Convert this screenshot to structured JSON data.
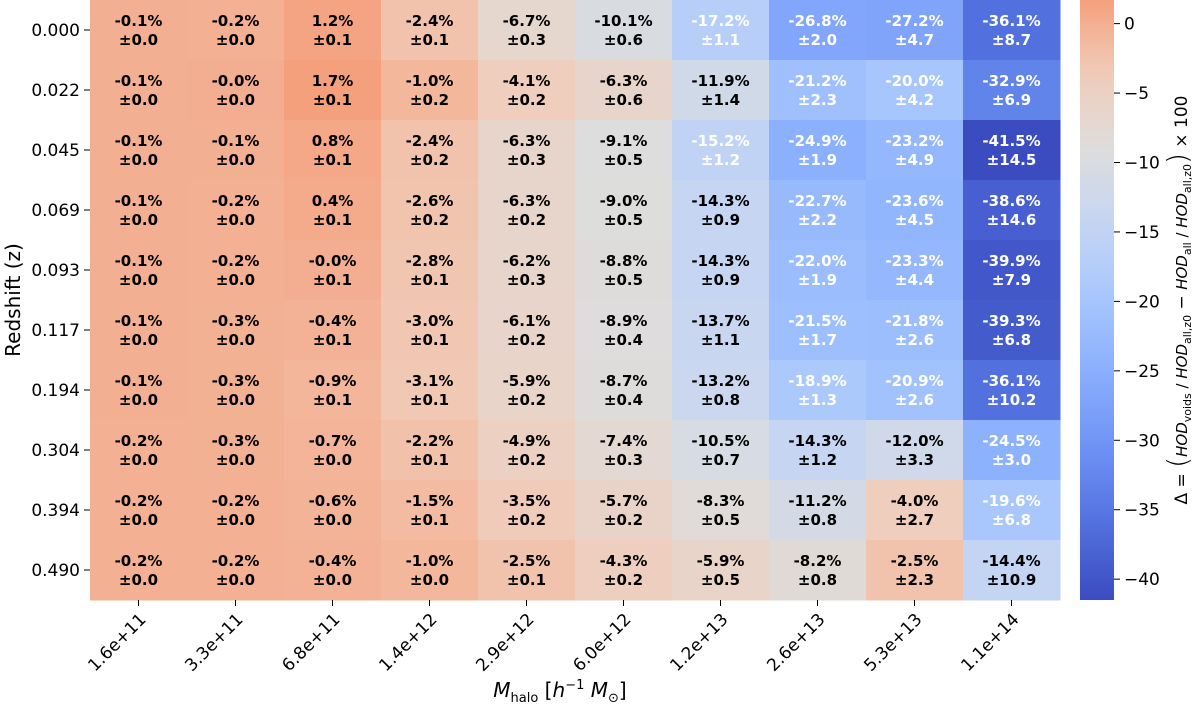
{
  "chart_data": {
    "type": "heatmap",
    "title": "",
    "xlabel": "M_halo [h^-1 M_⊙]",
    "ylabel": "Redshift (z)",
    "x_categories": [
      "1.6e+11",
      "3.3e+11",
      "6.8e+11",
      "1.4e+12",
      "2.9e+12",
      "6.0e+12",
      "1.2e+13",
      "2.6e+13",
      "5.3e+13",
      "1.1e+14"
    ],
    "y_categories": [
      "0.000",
      "0.022",
      "0.045",
      "0.069",
      "0.093",
      "0.117",
      "0.194",
      "0.304",
      "0.394",
      "0.490"
    ],
    "values": [
      [
        -0.1,
        -0.2,
        1.2,
        -2.4,
        -6.7,
        -10.1,
        -17.2,
        -26.8,
        -27.2,
        -36.1
      ],
      [
        -0.1,
        -0.0,
        1.7,
        -1.0,
        -4.1,
        -6.3,
        -11.9,
        -21.2,
        -20.0,
        -32.9
      ],
      [
        -0.1,
        -0.1,
        0.8,
        -2.4,
        -6.3,
        -9.1,
        -15.2,
        -24.9,
        -23.2,
        -41.5
      ],
      [
        -0.1,
        -0.2,
        0.4,
        -2.6,
        -6.3,
        -9.0,
        -14.3,
        -22.7,
        -23.6,
        -38.6
      ],
      [
        -0.1,
        -0.2,
        -0.0,
        -2.8,
        -6.2,
        -8.8,
        -14.3,
        -22.0,
        -23.3,
        -39.9
      ],
      [
        -0.1,
        -0.3,
        -0.4,
        -3.0,
        -6.1,
        -8.9,
        -13.7,
        -21.5,
        -21.8,
        -39.3
      ],
      [
        -0.1,
        -0.3,
        -0.9,
        -3.1,
        -5.9,
        -8.7,
        -13.2,
        -18.9,
        -20.9,
        -36.1
      ],
      [
        -0.2,
        -0.3,
        -0.7,
        -2.2,
        -4.9,
        -7.4,
        -10.5,
        -14.3,
        -12.0,
        -24.5
      ],
      [
        -0.2,
        -0.2,
        -0.6,
        -1.5,
        -3.5,
        -5.7,
        -8.3,
        -11.2,
        -4.0,
        -19.6
      ],
      [
        -0.2,
        -0.2,
        -0.4,
        -1.0,
        -2.5,
        -4.3,
        -5.9,
        -8.2,
        -2.5,
        -14.4
      ]
    ],
    "value_labels": [
      [
        "-0.1%",
        "-0.2%",
        "1.2%",
        "-2.4%",
        "-6.7%",
        "-10.1%",
        "-17.2%",
        "-26.8%",
        "-27.2%",
        "-36.1%"
      ],
      [
        "-0.1%",
        "-0.0%",
        "1.7%",
        "-1.0%",
        "-4.1%",
        "-6.3%",
        "-11.9%",
        "-21.2%",
        "-20.0%",
        "-32.9%"
      ],
      [
        "-0.1%",
        "-0.1%",
        "0.8%",
        "-2.4%",
        "-6.3%",
        "-9.1%",
        "-15.2%",
        "-24.9%",
        "-23.2%",
        "-41.5%"
      ],
      [
        "-0.1%",
        "-0.2%",
        "0.4%",
        "-2.6%",
        "-6.3%",
        "-9.0%",
        "-14.3%",
        "-22.7%",
        "-23.6%",
        "-38.6%"
      ],
      [
        "-0.1%",
        "-0.2%",
        "-0.0%",
        "-2.8%",
        "-6.2%",
        "-8.8%",
        "-14.3%",
        "-22.0%",
        "-23.3%",
        "-39.9%"
      ],
      [
        "-0.1%",
        "-0.3%",
        "-0.4%",
        "-3.0%",
        "-6.1%",
        "-8.9%",
        "-13.7%",
        "-21.5%",
        "-21.8%",
        "-39.3%"
      ],
      [
        "-0.1%",
        "-0.3%",
        "-0.9%",
        "-3.1%",
        "-5.9%",
        "-8.7%",
        "-13.2%",
        "-18.9%",
        "-20.9%",
        "-36.1%"
      ],
      [
        "-0.2%",
        "-0.3%",
        "-0.7%",
        "-2.2%",
        "-4.9%",
        "-7.4%",
        "-10.5%",
        "-14.3%",
        "-12.0%",
        "-24.5%"
      ],
      [
        "-0.2%",
        "-0.2%",
        "-0.6%",
        "-1.5%",
        "-3.5%",
        "-5.7%",
        "-8.3%",
        "-11.2%",
        "-4.0%",
        "-19.6%"
      ],
      [
        "-0.2%",
        "-0.2%",
        "-0.4%",
        "-1.0%",
        "-2.5%",
        "-4.3%",
        "-5.9%",
        "-8.2%",
        "-2.5%",
        "-14.4%"
      ]
    ],
    "errors": [
      [
        "±0.0",
        "±0.0",
        "±0.1",
        "±0.1",
        "±0.3",
        "±0.6",
        "±1.1",
        "±2.0",
        "±4.7",
        "±8.7"
      ],
      [
        "±0.0",
        "±0.0",
        "±0.1",
        "±0.2",
        "±0.2",
        "±0.6",
        "±1.4",
        "±2.3",
        "±4.2",
        "±6.9"
      ],
      [
        "±0.0",
        "±0.0",
        "±0.1",
        "±0.2",
        "±0.3",
        "±0.5",
        "±1.2",
        "±1.9",
        "±4.9",
        "±14.5"
      ],
      [
        "±0.0",
        "±0.0",
        "±0.1",
        "±0.2",
        "±0.2",
        "±0.5",
        "±0.9",
        "±2.2",
        "±4.5",
        "±14.6"
      ],
      [
        "±0.0",
        "±0.0",
        "±0.1",
        "±0.1",
        "±0.3",
        "±0.5",
        "±0.9",
        "±1.9",
        "±4.4",
        "±7.9"
      ],
      [
        "±0.0",
        "±0.0",
        "±0.1",
        "±0.1",
        "±0.2",
        "±0.4",
        "±1.1",
        "±1.7",
        "±2.6",
        "±6.8"
      ],
      [
        "±0.0",
        "±0.0",
        "±0.1",
        "±0.1",
        "±0.2",
        "±0.4",
        "±0.8",
        "±1.3",
        "±2.6",
        "±10.2"
      ],
      [
        "±0.0",
        "±0.0",
        "±0.0",
        "±0.1",
        "±0.2",
        "±0.3",
        "±0.7",
        "±1.2",
        "±3.3",
        "±3.0"
      ],
      [
        "±0.0",
        "±0.0",
        "±0.0",
        "±0.1",
        "±0.2",
        "±0.2",
        "±0.5",
        "±0.8",
        "±2.7",
        "±6.8"
      ],
      [
        "±0.0",
        "±0.0",
        "±0.0",
        "±0.0",
        "±0.1",
        "±0.2",
        "±0.5",
        "±0.8",
        "±2.3",
        "±10.9"
      ]
    ],
    "colormap": "coolwarm",
    "vmin": -41.5,
    "vmax": 1.7,
    "colorbar": {
      "ticks": [
        0,
        -5,
        -10,
        -15,
        -20,
        -25,
        -30,
        -35,
        -40
      ],
      "tick_labels": [
        "0",
        "−5",
        "−10",
        "−15",
        "−20",
        "−25",
        "−30",
        "−35",
        "−40"
      ],
      "label": "Δ = (HOD_voids / HOD_all,z0 − HOD_all / HOD_all,z0) × 100"
    },
    "colors": {
      "low": "#3b4cc0",
      "high": "#b40426",
      "white_text_threshold": -15
    }
  }
}
